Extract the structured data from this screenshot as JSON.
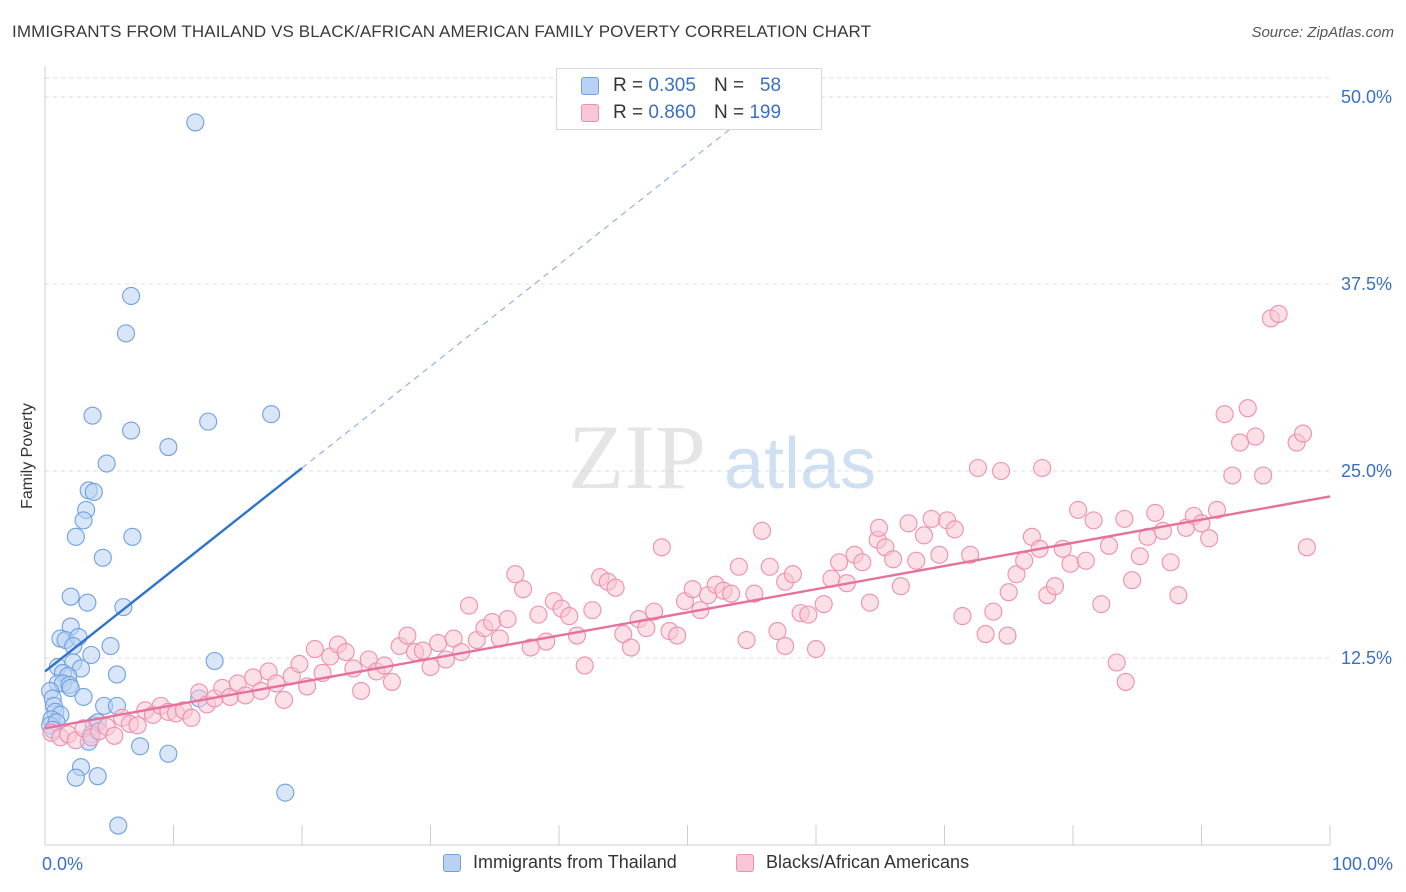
{
  "title": "IMMIGRANTS FROM THAILAND VS BLACK/AFRICAN AMERICAN FAMILY POVERTY CORRELATION CHART",
  "source": "Source: ZipAtlas.com",
  "watermark": {
    "zip": "ZIP",
    "atlas": "atlas"
  },
  "legend_top": [
    {
      "r_label": "R =",
      "r_value": "0.305",
      "n_label": "N =",
      "n_value": "58",
      "color": "#6fa0e0",
      "fill": "#b9d1f3"
    },
    {
      "r_label": "R =",
      "r_value": "0.860",
      "n_label": "N =",
      "n_value": "199",
      "color": "#ef8fb0",
      "fill": "#f8c6d6"
    }
  ],
  "chart_data": {
    "type": "scatter",
    "title": "IMMIGRANTS FROM THAILAND VS BLACK/AFRICAN AMERICAN FAMILY POVERTY CORRELATION CHART",
    "xlabel": "",
    "ylabel": "Family Poverty",
    "xlim": [
      0,
      100
    ],
    "ylim": [
      0,
      50
    ],
    "x_tick_labels": [
      "0.0%",
      "100.0%"
    ],
    "y_ticks": [
      12.5,
      25.0,
      37.5,
      50.0
    ],
    "y_tick_labels": [
      "12.5%",
      "25.0%",
      "37.5%",
      "50.0%"
    ],
    "grid": true,
    "legend_position": "bottom",
    "series": [
      {
        "name": "Immigrants from Thailand",
        "color": "#6fa0e0",
        "fill": "#b9d1f3",
        "trend": {
          "x0": 0,
          "y0": 11.6,
          "x1": 20,
          "y1": 25.2,
          "dashed_to_x": 53.5
        },
        "points": [
          [
            11.7,
            48.3
          ],
          [
            6.7,
            36.7
          ],
          [
            6.3,
            34.2
          ],
          [
            3.7,
            28.7
          ],
          [
            12.7,
            28.3
          ],
          [
            17.6,
            28.8
          ],
          [
            6.7,
            27.7
          ],
          [
            9.6,
            26.6
          ],
          [
            4.8,
            25.5
          ],
          [
            3.4,
            23.7
          ],
          [
            3.8,
            23.6
          ],
          [
            3.2,
            22.4
          ],
          [
            3.0,
            21.7
          ],
          [
            2.4,
            20.6
          ],
          [
            6.8,
            20.6
          ],
          [
            4.5,
            19.2
          ],
          [
            6.1,
            15.9
          ],
          [
            2.0,
            16.6
          ],
          [
            3.3,
            16.2
          ],
          [
            2.0,
            14.6
          ],
          [
            1.2,
            13.8
          ],
          [
            1.6,
            13.7
          ],
          [
            2.6,
            13.9
          ],
          [
            5.1,
            13.3
          ],
          [
            2.2,
            13.3
          ],
          [
            3.6,
            12.7
          ],
          [
            1.0,
            11.9
          ],
          [
            2.2,
            12.2
          ],
          [
            2.8,
            11.8
          ],
          [
            1.4,
            11.5
          ],
          [
            1.8,
            11.3
          ],
          [
            5.6,
            11.4
          ],
          [
            1.0,
            10.8
          ],
          [
            1.4,
            10.8
          ],
          [
            1.9,
            10.7
          ],
          [
            2.0,
            10.5
          ],
          [
            0.4,
            10.3
          ],
          [
            0.6,
            9.8
          ],
          [
            3.0,
            9.9
          ],
          [
            0.7,
            9.3
          ],
          [
            4.6,
            9.3
          ],
          [
            5.6,
            9.3
          ],
          [
            0.8,
            8.9
          ],
          [
            1.2,
            8.7
          ],
          [
            0.5,
            8.4
          ],
          [
            0.4,
            8.0
          ],
          [
            0.9,
            8.2
          ],
          [
            3.8,
            8.0
          ],
          [
            4.1,
            8.2
          ],
          [
            3.6,
            7.4
          ],
          [
            0.6,
            7.7
          ],
          [
            3.4,
            6.9
          ],
          [
            7.4,
            6.6
          ],
          [
            9.6,
            6.1
          ],
          [
            2.8,
            5.2
          ],
          [
            2.4,
            4.5
          ],
          [
            4.1,
            4.6
          ],
          [
            13.2,
            12.3
          ],
          [
            12.0,
            9.8
          ],
          [
            18.7,
            3.5
          ],
          [
            5.7,
            1.3
          ]
        ]
      },
      {
        "name": "Blacks/African Americans",
        "color": "#ef8fb0",
        "fill": "#f8c6d6",
        "trend": {
          "x0": 0,
          "y0": 7.8,
          "x1": 100,
          "y1": 23.3
        },
        "points": [
          [
            0.5,
            7.5
          ],
          [
            1.2,
            7.2
          ],
          [
            1.8,
            7.4
          ],
          [
            2.4,
            7.0
          ],
          [
            3.0,
            7.8
          ],
          [
            3.6,
            7.2
          ],
          [
            4.2,
            7.6
          ],
          [
            4.8,
            7.9
          ],
          [
            5.4,
            7.3
          ],
          [
            6.0,
            8.5
          ],
          [
            6.6,
            8.1
          ],
          [
            7.2,
            8.0
          ],
          [
            7.8,
            9.0
          ],
          [
            8.4,
            8.7
          ],
          [
            9.0,
            9.3
          ],
          [
            9.6,
            8.9
          ],
          [
            10.2,
            8.8
          ],
          [
            10.8,
            9.0
          ],
          [
            11.4,
            8.5
          ],
          [
            12.0,
            10.2
          ],
          [
            12.6,
            9.4
          ],
          [
            13.2,
            9.8
          ],
          [
            13.8,
            10.5
          ],
          [
            14.4,
            9.9
          ],
          [
            15.0,
            10.8
          ],
          [
            15.6,
            10.0
          ],
          [
            16.2,
            11.2
          ],
          [
            16.8,
            10.3
          ],
          [
            17.4,
            11.6
          ],
          [
            18.0,
            10.8
          ],
          [
            18.6,
            9.7
          ],
          [
            19.2,
            11.3
          ],
          [
            19.8,
            12.1
          ],
          [
            20.4,
            10.6
          ],
          [
            21.0,
            13.1
          ],
          [
            21.6,
            11.5
          ],
          [
            22.2,
            12.6
          ],
          [
            22.8,
            13.4
          ],
          [
            23.4,
            12.9
          ],
          [
            24.0,
            11.8
          ],
          [
            24.6,
            10.3
          ],
          [
            25.2,
            12.4
          ],
          [
            25.8,
            11.6
          ],
          [
            26.4,
            12.0
          ],
          [
            27.0,
            10.9
          ],
          [
            27.6,
            13.3
          ],
          [
            28.2,
            14.0
          ],
          [
            28.8,
            12.9
          ],
          [
            29.4,
            13.0
          ],
          [
            30.0,
            11.9
          ],
          [
            30.6,
            13.5
          ],
          [
            31.2,
            12.4
          ],
          [
            31.8,
            13.8
          ],
          [
            32.4,
            12.9
          ],
          [
            33.0,
            16.0
          ],
          [
            33.6,
            13.7
          ],
          [
            34.2,
            14.5
          ],
          [
            34.8,
            14.9
          ],
          [
            35.4,
            13.8
          ],
          [
            36.0,
            15.1
          ],
          [
            36.6,
            18.1
          ],
          [
            37.2,
            17.1
          ],
          [
            37.8,
            13.2
          ],
          [
            38.4,
            15.4
          ],
          [
            39.0,
            13.6
          ],
          [
            39.6,
            16.3
          ],
          [
            40.2,
            15.8
          ],
          [
            40.8,
            15.3
          ],
          [
            41.4,
            14.0
          ],
          [
            42.0,
            12.0
          ],
          [
            42.6,
            15.7
          ],
          [
            43.2,
            17.9
          ],
          [
            43.8,
            17.6
          ],
          [
            44.4,
            17.2
          ],
          [
            45.0,
            14.1
          ],
          [
            45.6,
            13.2
          ],
          [
            46.2,
            15.1
          ],
          [
            46.8,
            14.5
          ],
          [
            47.4,
            15.6
          ],
          [
            48.0,
            19.9
          ],
          [
            48.6,
            14.3
          ],
          [
            49.2,
            14.0
          ],
          [
            49.8,
            16.3
          ],
          [
            50.4,
            17.1
          ],
          [
            51.0,
            15.7
          ],
          [
            51.6,
            16.7
          ],
          [
            52.2,
            17.4
          ],
          [
            52.8,
            17.0
          ],
          [
            53.4,
            16.8
          ],
          [
            54.0,
            18.6
          ],
          [
            54.6,
            13.7
          ],
          [
            55.2,
            16.8
          ],
          [
            55.8,
            21.0
          ],
          [
            56.4,
            18.6
          ],
          [
            57.0,
            14.3
          ],
          [
            57.6,
            17.6
          ],
          [
            58.2,
            18.1
          ],
          [
            58.8,
            15.5
          ],
          [
            59.4,
            15.4
          ],
          [
            60.0,
            13.1
          ],
          [
            60.6,
            16.1
          ],
          [
            61.2,
            17.8
          ],
          [
            61.8,
            18.9
          ],
          [
            62.4,
            17.5
          ],
          [
            63.0,
            19.4
          ],
          [
            63.6,
            18.9
          ],
          [
            64.2,
            16.2
          ],
          [
            64.8,
            20.4
          ],
          [
            65.4,
            19.9
          ],
          [
            66.0,
            19.1
          ],
          [
            66.6,
            17.3
          ],
          [
            67.2,
            21.5
          ],
          [
            67.8,
            19.0
          ],
          [
            68.4,
            20.7
          ],
          [
            69.0,
            21.8
          ],
          [
            69.6,
            19.4
          ],
          [
            70.2,
            21.7
          ],
          [
            70.8,
            21.1
          ],
          [
            71.4,
            15.3
          ],
          [
            72.0,
            19.4
          ],
          [
            72.6,
            25.2
          ],
          [
            73.2,
            14.1
          ],
          [
            73.8,
            15.6
          ],
          [
            74.4,
            25.0
          ],
          [
            75.0,
            16.9
          ],
          [
            75.6,
            18.1
          ],
          [
            76.2,
            19.0
          ],
          [
            76.8,
            20.6
          ],
          [
            77.4,
            19.8
          ],
          [
            78.0,
            16.7
          ],
          [
            78.6,
            17.3
          ],
          [
            79.2,
            19.8
          ],
          [
            79.8,
            18.8
          ],
          [
            80.4,
            22.4
          ],
          [
            81.0,
            19.0
          ],
          [
            81.6,
            21.7
          ],
          [
            82.2,
            16.1
          ],
          [
            82.8,
            20.0
          ],
          [
            83.4,
            12.2
          ],
          [
            84.0,
            21.8
          ],
          [
            84.6,
            17.7
          ],
          [
            85.2,
            19.3
          ],
          [
            85.8,
            20.6
          ],
          [
            86.4,
            22.2
          ],
          [
            87.0,
            21.0
          ],
          [
            87.6,
            18.9
          ],
          [
            88.2,
            16.7
          ],
          [
            88.8,
            21.2
          ],
          [
            89.4,
            22.0
          ],
          [
            90.0,
            21.5
          ],
          [
            90.6,
            20.5
          ],
          [
            91.2,
            22.4
          ],
          [
            91.8,
            28.8
          ],
          [
            92.4,
            24.7
          ],
          [
            93.0,
            26.9
          ],
          [
            93.6,
            29.2
          ],
          [
            94.2,
            27.3
          ],
          [
            94.8,
            24.7
          ],
          [
            95.4,
            35.2
          ],
          [
            96.0,
            35.5
          ],
          [
            97.4,
            26.9
          ],
          [
            97.9,
            27.5
          ],
          [
            77.6,
            25.2
          ],
          [
            64.9,
            21.2
          ],
          [
            84.1,
            10.9
          ],
          [
            57.6,
            13.3
          ],
          [
            74.9,
            14.0
          ],
          [
            98.2,
            19.9
          ]
        ]
      }
    ]
  }
}
